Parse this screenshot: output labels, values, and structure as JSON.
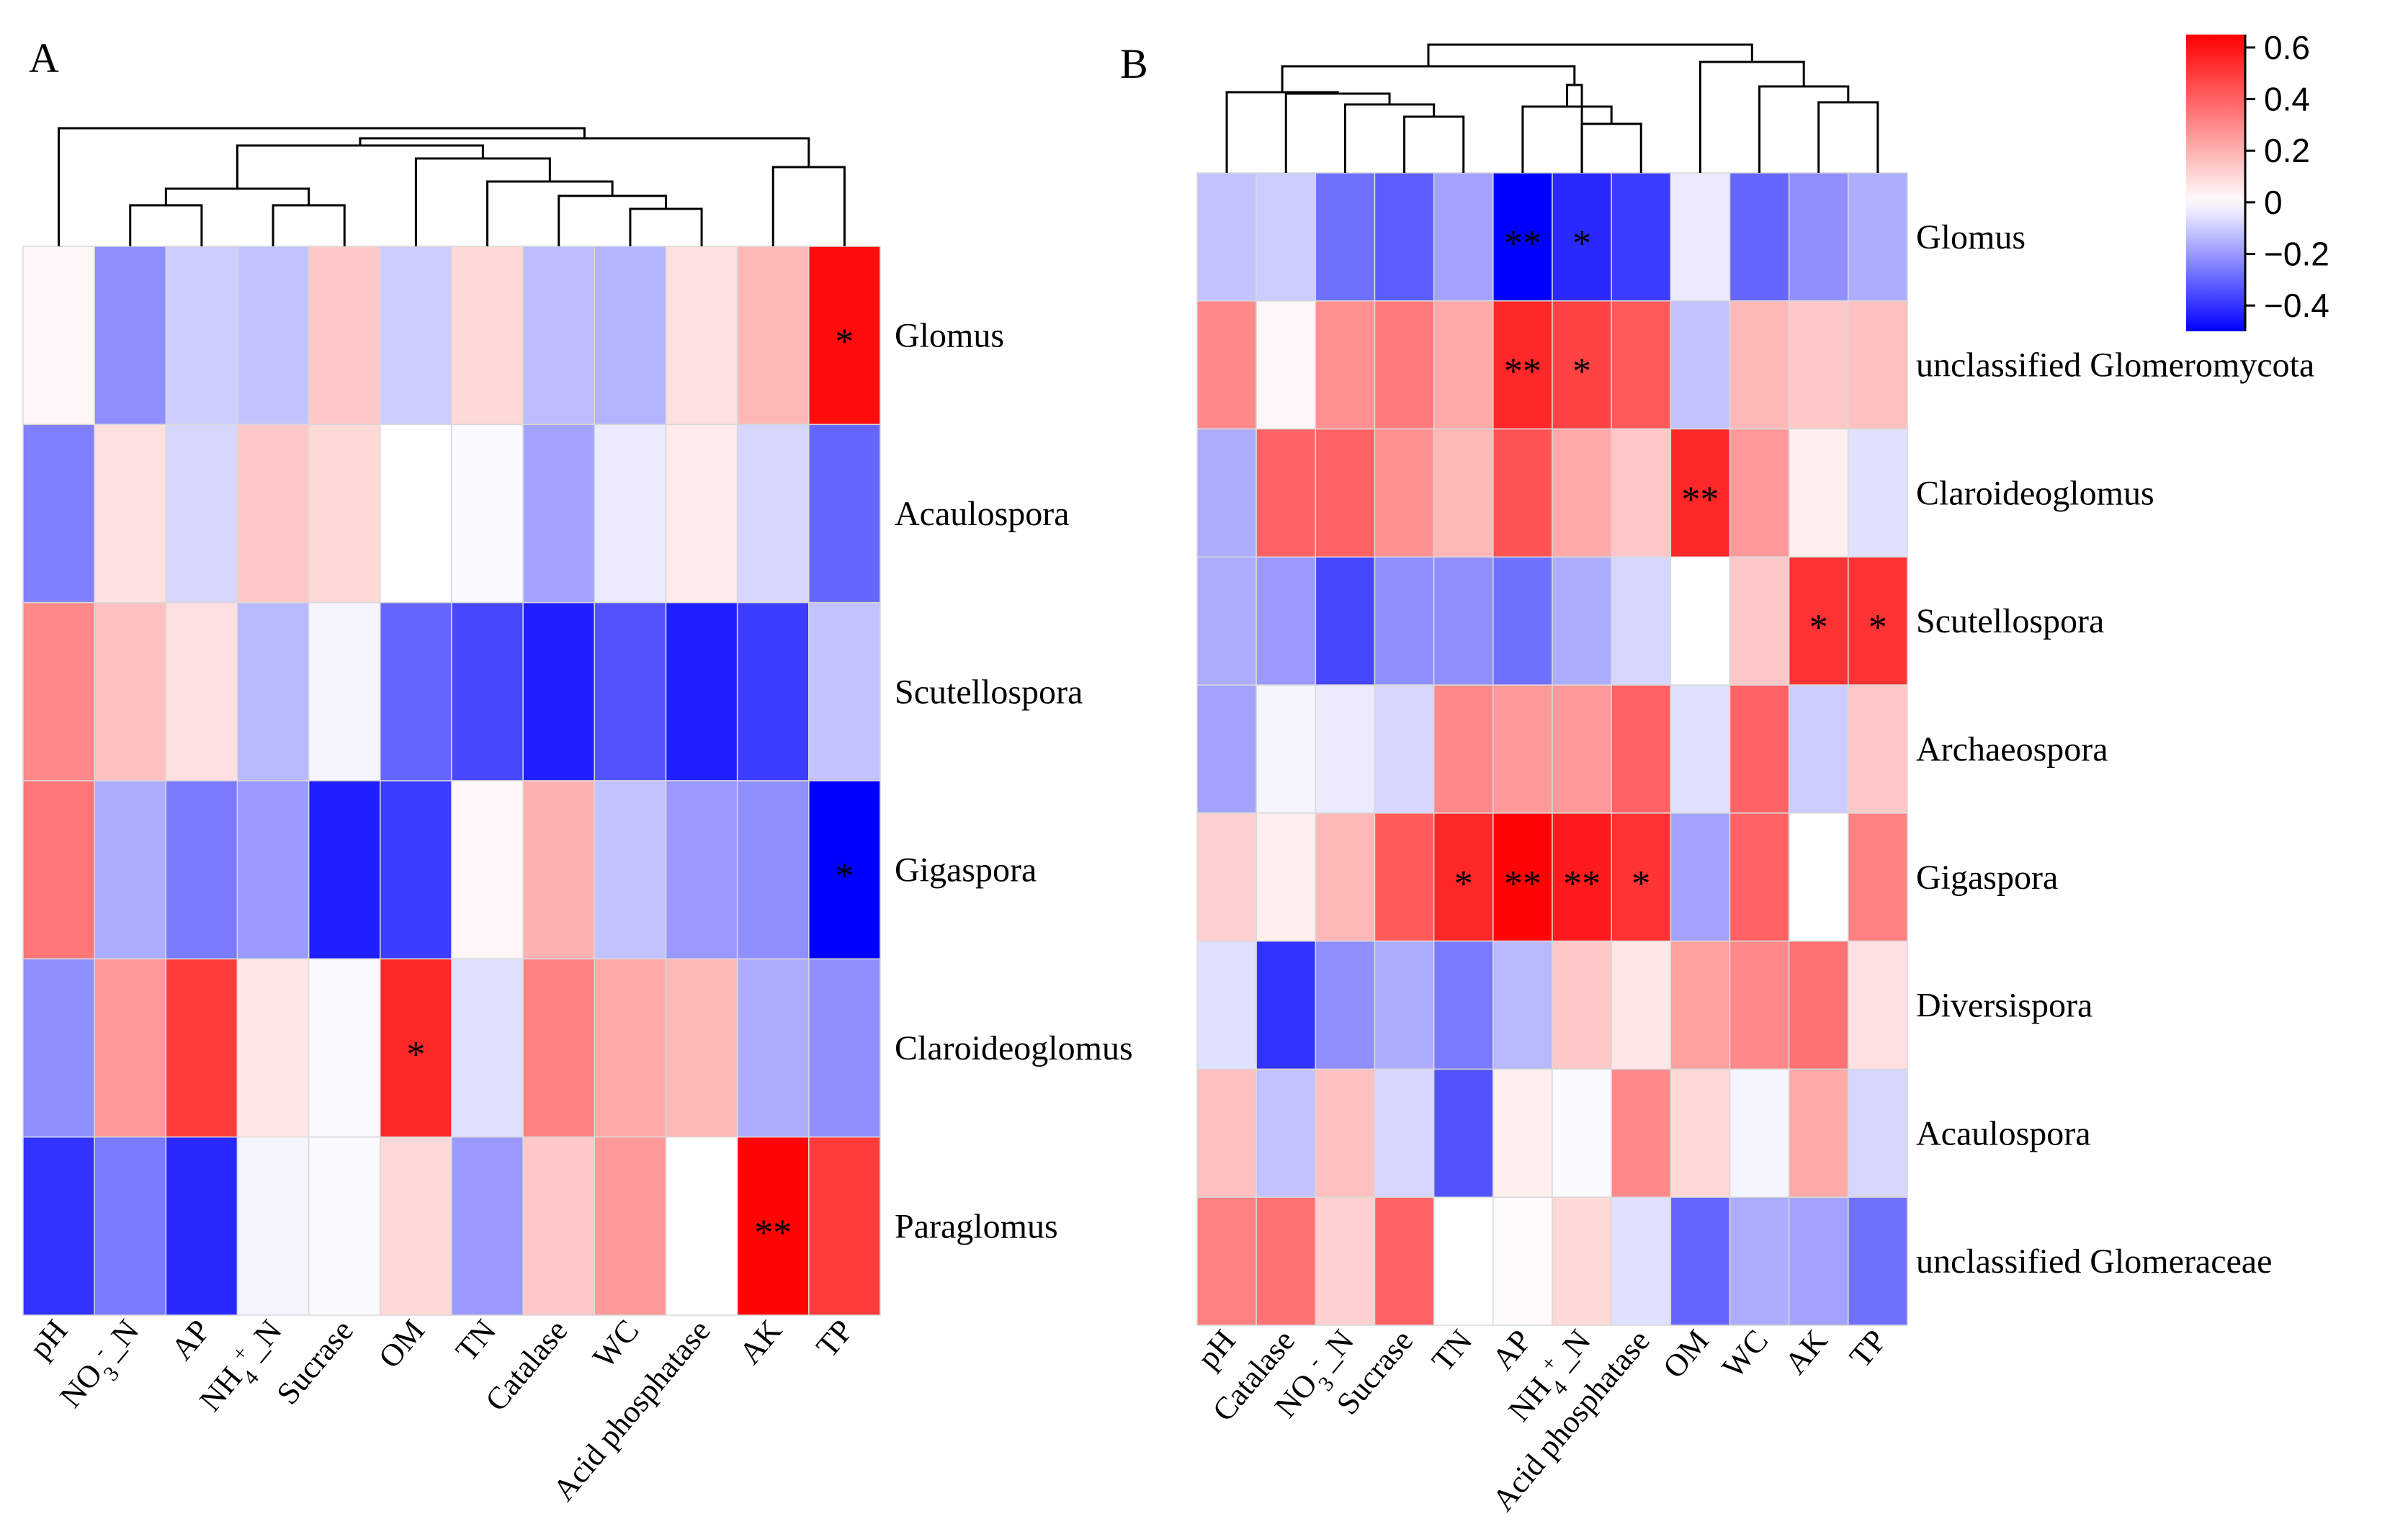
{
  "chart_data": [
    {
      "type": "heatmap",
      "panel": "A",
      "rows": [
        "Glomus",
        "Acaulospora",
        "Scutellospora",
        "Gigaspora",
        "Claroideoglomus",
        "Paraglomus"
      ],
      "columns": [
        "pH",
        "NO3--N",
        "AP",
        "NH4+-N",
        "Sucrase",
        "OM",
        "TN",
        "Catalase",
        "WC",
        "Acid phosphatase",
        "AK",
        "TP"
      ],
      "values": [
        [
          0.02,
          -0.22,
          -0.1,
          -0.12,
          0.14,
          -0.1,
          0.1,
          -0.13,
          -0.15,
          0.08,
          0.18,
          0.62
        ],
        [
          -0.25,
          0.08,
          -0.08,
          0.14,
          0.1,
          0.0,
          -0.01,
          -0.18,
          -0.04,
          0.05,
          -0.08,
          -0.3
        ],
        [
          0.3,
          0.16,
          0.08,
          -0.14,
          -0.02,
          -0.3,
          -0.36,
          -0.44,
          -0.34,
          -0.44,
          -0.38,
          -0.12
        ],
        [
          0.35,
          -0.16,
          -0.26,
          -0.2,
          -0.44,
          -0.38,
          0.02,
          0.2,
          -0.12,
          -0.2,
          -0.22,
          -0.52
        ],
        [
          -0.22,
          0.26,
          0.5,
          0.06,
          -0.01,
          0.55,
          -0.06,
          0.32,
          0.22,
          0.18,
          -0.16,
          -0.22
        ],
        [
          -0.4,
          -0.26,
          -0.42,
          -0.02,
          -0.01,
          0.1,
          -0.2,
          0.14,
          0.26,
          0.0,
          0.64,
          0.5
        ]
      ],
      "significance": [
        [
          "",
          "",
          "",
          "",
          "",
          "",
          "",
          "",
          "",
          "",
          "",
          "*"
        ],
        [
          "",
          "",
          "",
          "",
          "",
          "",
          "",
          "",
          "",
          "",
          "",
          ""
        ],
        [
          "",
          "",
          "",
          "",
          "",
          "",
          "",
          "",
          "",
          "",
          "",
          ""
        ],
        [
          "",
          "",
          "",
          "",
          "",
          "",
          "",
          "",
          "",
          "",
          "",
          "*"
        ],
        [
          "",
          "",
          "",
          "",
          "",
          "*",
          "",
          "",
          "",
          "",
          "",
          ""
        ],
        [
          "",
          "",
          "",
          "",
          "",
          "",
          "",
          "",
          "",
          "",
          "**",
          ""
        ]
      ]
    },
    {
      "type": "heatmap",
      "panel": "B",
      "rows": [
        "Glomus",
        "unclassified  Glomeromycota",
        "Claroideoglomus",
        "Scutellospora",
        "Archaeospora",
        "Gigaspora",
        "Diversispora",
        "Acaulospora",
        "unclassified  Glomeraceae"
      ],
      "columns": [
        "pH",
        "Catalase",
        "NO3--N",
        "Sucrase",
        "TN",
        "AP",
        "NH4+-N",
        "Acid phosphatase",
        "OM",
        "WC",
        "AK",
        "TP"
      ],
      "values": [
        [
          -0.12,
          -0.1,
          -0.28,
          -0.32,
          -0.18,
          -0.5,
          -0.42,
          -0.38,
          -0.04,
          -0.3,
          -0.22,
          -0.16
        ],
        [
          0.3,
          0.02,
          0.28,
          0.34,
          0.22,
          0.55,
          0.48,
          0.42,
          -0.12,
          0.18,
          0.14,
          0.16
        ],
        [
          -0.16,
          0.4,
          0.4,
          0.28,
          0.18,
          0.44,
          0.22,
          0.14,
          0.55,
          0.26,
          0.04,
          -0.06
        ],
        [
          -0.16,
          -0.2,
          -0.36,
          -0.22,
          -0.22,
          -0.28,
          -0.16,
          -0.08,
          0.0,
          0.14,
          0.52,
          0.52
        ],
        [
          -0.18,
          -0.02,
          -0.04,
          -0.08,
          0.3,
          0.26,
          0.26,
          0.4,
          -0.06,
          0.4,
          -0.1,
          0.14
        ],
        [
          0.12,
          0.04,
          0.18,
          0.42,
          0.55,
          0.64,
          0.58,
          0.52,
          -0.18,
          0.4,
          0.0,
          0.32
        ],
        [
          -0.06,
          -0.4,
          -0.22,
          -0.16,
          -0.26,
          -0.14,
          0.14,
          0.06,
          0.24,
          0.3,
          0.36,
          0.08
        ],
        [
          0.16,
          -0.12,
          0.16,
          -0.08,
          -0.34,
          0.04,
          -0.01,
          0.3,
          0.1,
          -0.02,
          0.22,
          -0.08
        ],
        [
          0.32,
          0.36,
          0.12,
          0.4,
          0.0,
          0.01,
          0.1,
          -0.06,
          -0.3,
          -0.16,
          -0.18,
          -0.28
        ]
      ],
      "significance": [
        [
          "",
          "",
          "",
          "",
          "",
          "**",
          "*",
          "",
          "",
          "",
          "",
          ""
        ],
        [
          "",
          "",
          "",
          "",
          "",
          "**",
          "*",
          "",
          "",
          "",
          "",
          ""
        ],
        [
          "",
          "",
          "",
          "",
          "",
          "",
          "",
          "",
          "**",
          "",
          "",
          ""
        ],
        [
          "",
          "",
          "",
          "",
          "",
          "",
          "",
          "",
          "",
          "",
          "*",
          "*"
        ],
        [
          "",
          "",
          "",
          "",
          "",
          "",
          "",
          "",
          "",
          "",
          "",
          ""
        ],
        [
          "",
          "",
          "",
          "",
          "*",
          "**",
          "**",
          "*",
          "",
          "",
          "",
          ""
        ],
        [
          "",
          "",
          "",
          "",
          "",
          "",
          "",
          "",
          "",
          "",
          "",
          ""
        ],
        [
          "",
          "",
          "",
          "",
          "",
          "",
          "",
          "",
          "",
          "",
          "",
          ""
        ],
        [
          "",
          "",
          "",
          "",
          "",
          "",
          "",
          "",
          "",
          "",
          "",
          ""
        ]
      ]
    }
  ],
  "colorbar": {
    "min": -0.5,
    "max": 0.65,
    "ticks": [
      0.6,
      0.4,
      0.2,
      0,
      -0.2,
      -0.4
    ],
    "tick_labels": [
      "0.6",
      "0.4",
      "0.2",
      "0",
      "−0.2",
      "−0.4"
    ],
    "colors": {
      "low": "#0000ff",
      "mid": "#ffffff",
      "high": "#ff0000"
    }
  }
}
